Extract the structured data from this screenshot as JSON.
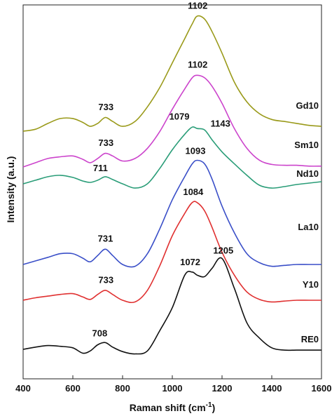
{
  "chart_data": {
    "type": "line",
    "xlabel": "Raman shift (cm",
    "xlabel_superscript": "-1",
    "xlabel_suffix": ")",
    "ylabel": "Intensity (a.u.)",
    "xlim": [
      400,
      1600
    ],
    "xticks": [
      400,
      600,
      800,
      1000,
      1200,
      1400,
      1600
    ],
    "x": [
      400,
      450,
      500,
      550,
      600,
      640,
      670,
      700,
      730,
      760,
      800,
      850,
      900,
      950,
      1000,
      1050,
      1080,
      1100,
      1130,
      1160,
      1200,
      1250,
      1300,
      1350,
      1400,
      1450,
      1500,
      1550,
      1600
    ],
    "series": [
      {
        "name": "Gd10",
        "color": "#9a9a1a",
        "values": [
          0.0,
          0.02,
          0.08,
          0.13,
          0.13,
          0.09,
          0.05,
          0.08,
          0.14,
          0.1,
          0.05,
          0.1,
          0.25,
          0.45,
          0.7,
          0.95,
          1.1,
          1.18,
          1.15,
          1.02,
          0.8,
          0.5,
          0.3,
          0.18,
          0.12,
          0.1,
          0.08,
          0.06,
          0.05
        ]
      },
      {
        "name": "Sm10",
        "color": "#cc44cc",
        "values": [
          0.0,
          0.05,
          0.1,
          0.12,
          0.13,
          0.09,
          0.05,
          0.1,
          0.16,
          0.13,
          0.07,
          0.1,
          0.22,
          0.42,
          0.68,
          0.92,
          1.05,
          1.08,
          1.05,
          0.95,
          0.75,
          0.45,
          0.22,
          0.08,
          0.03,
          0.02,
          0.02,
          0.01,
          0.01
        ]
      },
      {
        "name": "Nd10",
        "color": "#2a9d78",
        "values": [
          0.0,
          0.05,
          0.1,
          0.12,
          0.09,
          0.04,
          0.02,
          0.05,
          0.1,
          0.06,
          0.0,
          -0.06,
          0.0,
          0.22,
          0.48,
          0.7,
          0.8,
          0.78,
          0.76,
          0.62,
          0.45,
          0.28,
          0.12,
          -0.02,
          -0.06,
          -0.04,
          -0.01,
          0.01,
          0.03
        ]
      },
      {
        "name": "La10",
        "color": "#3a4fc8",
        "values": [
          0.0,
          0.04,
          0.08,
          0.12,
          0.12,
          0.07,
          0.03,
          0.1,
          0.17,
          0.1,
          0.0,
          -0.02,
          0.12,
          0.4,
          0.72,
          0.98,
          1.12,
          1.16,
          1.12,
          0.95,
          0.65,
          0.35,
          0.12,
          0.02,
          -0.02,
          -0.01,
          0.0,
          0.0,
          0.0
        ]
      },
      {
        "name": "Y10",
        "color": "#e03030",
        "values": [
          0.0,
          0.03,
          0.05,
          0.07,
          0.08,
          0.04,
          0.01,
          0.07,
          0.12,
          0.07,
          0.0,
          -0.02,
          0.12,
          0.42,
          0.78,
          1.05,
          1.18,
          1.18,
          1.08,
          0.88,
          0.58,
          0.3,
          0.1,
          0.01,
          -0.02,
          -0.01,
          0.0,
          0.0,
          0.0
        ]
      },
      {
        "name": "RE0",
        "color": "#111111",
        "values": [
          0.0,
          0.03,
          0.05,
          0.04,
          0.02,
          -0.05,
          -0.02,
          0.06,
          0.09,
          0.03,
          -0.03,
          -0.06,
          -0.02,
          0.25,
          0.55,
          0.98,
          1.02,
          0.98,
          0.96,
          1.07,
          1.2,
          0.8,
          0.35,
          0.15,
          0.02,
          -0.01,
          -0.01,
          -0.01,
          -0.01
        ]
      }
    ],
    "annotations": [
      {
        "text": "1102",
        "series": "Gd10",
        "x": 1102
      },
      {
        "text": "733",
        "series": "Gd10",
        "x": 733
      },
      {
        "text": "1102",
        "series": "Sm10",
        "x": 1102
      },
      {
        "text": "733",
        "series": "Sm10",
        "x": 733
      },
      {
        "text": "1079",
        "series": "Nd10",
        "x": 1079
      },
      {
        "text": "1143",
        "series": "Nd10",
        "x": 1143
      },
      {
        "text": "711",
        "series": "Nd10",
        "x": 711
      },
      {
        "text": "1093",
        "series": "La10",
        "x": 1093
      },
      {
        "text": "731",
        "series": "La10",
        "x": 731
      },
      {
        "text": "1084",
        "series": "Y10",
        "x": 1084
      },
      {
        "text": "733",
        "series": "Y10",
        "x": 733
      },
      {
        "text": "1205",
        "series": "RE0",
        "x": 1205
      },
      {
        "text": "1072",
        "series": "RE0",
        "x": 1072
      },
      {
        "text": "708",
        "series": "RE0",
        "x": 708
      }
    ],
    "grid": false,
    "legend": "series labels at right end of each trace"
  }
}
